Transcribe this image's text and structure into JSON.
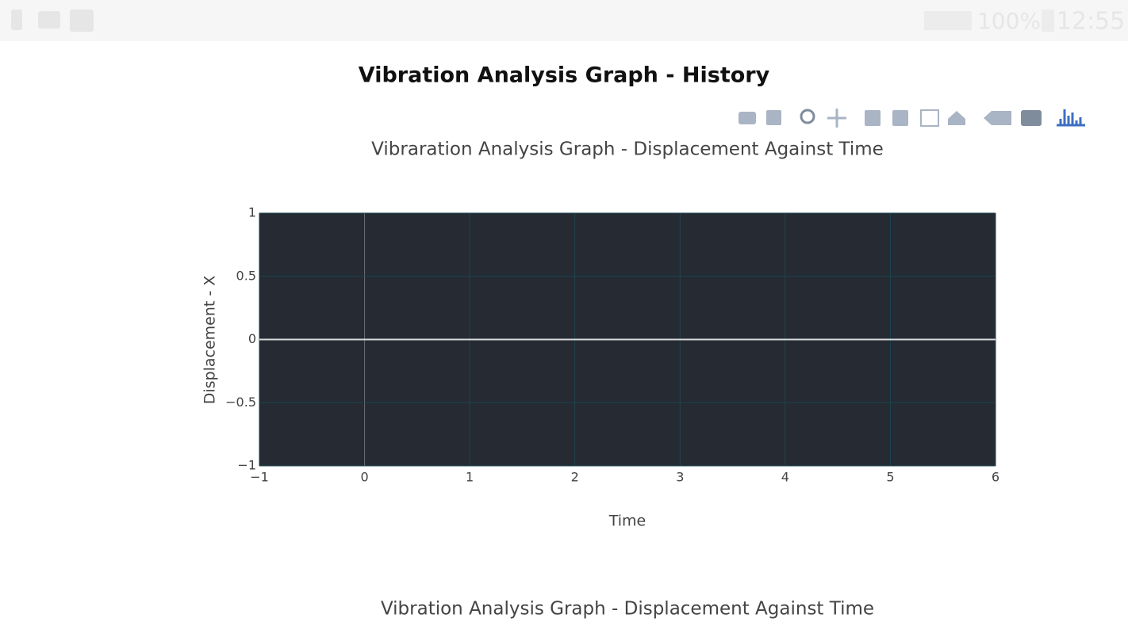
{
  "status_bar": {
    "battery": "100%",
    "time": "12:55"
  },
  "header": {
    "title": "Vibration Analysis Graph - History"
  },
  "chart_data": [
    {
      "type": "line",
      "title": "Vibraration Analysis Graph - Displacement Against Time",
      "xlabel": "Time",
      "ylabel": "Displacement - X",
      "xlim": [
        -1,
        6
      ],
      "ylim": [
        -1,
        1
      ],
      "xticks": [
        {
          "value": -1,
          "label": "−1"
        },
        0,
        1,
        2,
        3,
        4,
        5,
        6
      ],
      "yticks": [
        {
          "value": -1,
          "label": "−1"
        },
        {
          "value": -0.5,
          "label": "−0.5"
        },
        0,
        0.5,
        1
      ],
      "grid": true,
      "series": []
    },
    {
      "type": "line",
      "title": "Vibration Analysis Graph - Displacement Against Time",
      "series": []
    }
  ]
}
